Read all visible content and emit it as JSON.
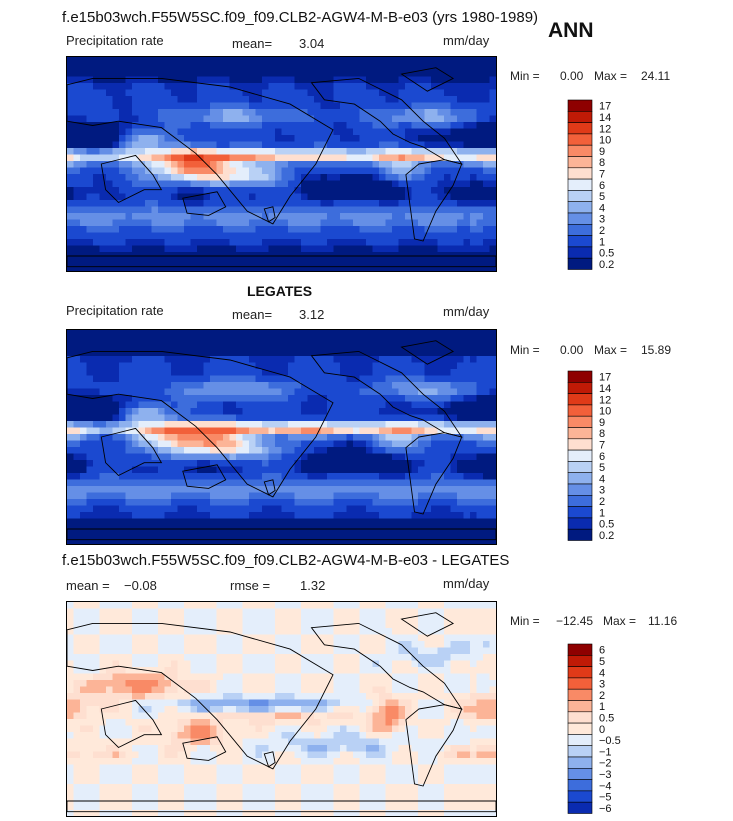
{
  "title": "f.e15b03wch.F55W5SC.f09_f09.CLB2-AGW4-M-B-e03 (yrs 1980-1989)",
  "season": "ANN",
  "chart_data": [
    {
      "type": "heatmap",
      "title": "",
      "field": "Precipitation rate",
      "units": "mm/day",
      "mean_label": "mean=",
      "mean": "3.04",
      "min_label": "Min =",
      "min": "0.00",
      "max_label": "Max =",
      "max": "24.11",
      "levels": [
        "17",
        "14",
        "12",
        "10",
        "9",
        "8",
        "7",
        "6",
        "5",
        "4",
        "3",
        "2",
        "1",
        "0.5",
        "0.2"
      ],
      "colors": [
        "#8e0000",
        "#c01a06",
        "#e03a18",
        "#f2603a",
        "#f98a66",
        "#fcb497",
        "#fedfd0",
        "#e4eefb",
        "#b9d1f5",
        "#8eb1ee",
        "#658fe6",
        "#3d6ddc",
        "#1b49d0",
        "#0a2bb0",
        "#001a80"
      ],
      "colormap": "precip"
    },
    {
      "type": "heatmap",
      "title": "LEGATES",
      "field": "Precipitation rate",
      "units": "mm/day",
      "mean_label": "mean=",
      "mean": "3.12",
      "min_label": "Min =",
      "min": "0.00",
      "max_label": "Max =",
      "max": "15.89",
      "levels": [
        "17",
        "14",
        "12",
        "10",
        "9",
        "8",
        "7",
        "6",
        "5",
        "4",
        "3",
        "2",
        "1",
        "0.5",
        "0.2"
      ],
      "colors": [
        "#8e0000",
        "#c01a06",
        "#e03a18",
        "#f2603a",
        "#f98a66",
        "#fcb497",
        "#fedfd0",
        "#e4eefb",
        "#b9d1f5",
        "#8eb1ee",
        "#658fe6",
        "#3d6ddc",
        "#1b49d0",
        "#0a2bb0",
        "#001a80"
      ],
      "colormap": "precip"
    },
    {
      "type": "heatmap",
      "title": "f.e15b03wch.F55W5SC.f09_f09.CLB2-AGW4-M-B-e03 - LEGATES",
      "units": "mm/day",
      "mean_label": "mean =",
      "mean": "−0.08",
      "rmse_label": "rmse =",
      "rmse": "1.32",
      "min_label": "Min =",
      "min": "−12.45",
      "max_label": "Max =",
      "max": "11.16",
      "levels": [
        "6",
        "5",
        "4",
        "3",
        "2",
        "1",
        "0.5",
        "0",
        "−0.5",
        "−1",
        "−2",
        "−3",
        "−4",
        "−5",
        "−6"
      ],
      "colors": [
        "#8e0000",
        "#c01a06",
        "#e03a18",
        "#f2603a",
        "#f98a66",
        "#fcb497",
        "#fedfd0",
        "#ffe9da",
        "#e4eefb",
        "#b9d1f5",
        "#8eb1ee",
        "#658fe6",
        "#3d6ddc",
        "#1b49d0",
        "#0a2bb0"
      ],
      "colormap": "diff"
    }
  ]
}
